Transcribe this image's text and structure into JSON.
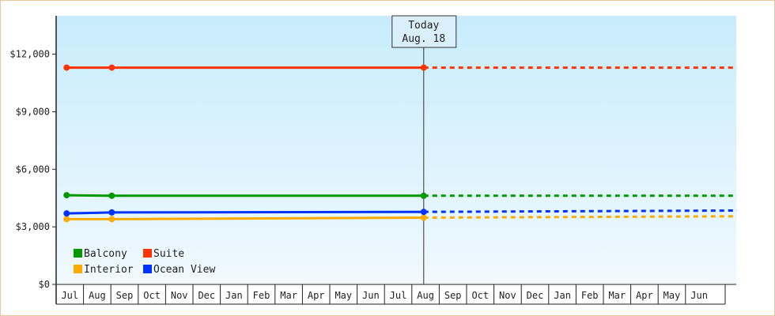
{
  "chart_data": {
    "type": "line",
    "title": "",
    "xlabel": "",
    "ylabel": "",
    "ylim": [
      0,
      14000
    ],
    "yticks": [
      0,
      3000,
      6000,
      9000,
      12000
    ],
    "ytick_labels": [
      "$0",
      "$3,000",
      "$6,000",
      "$9,000",
      "$12,000"
    ],
    "months": [
      "Jul",
      "Aug",
      "Sep",
      "Oct",
      "Nov",
      "Dec",
      "Jan",
      "Feb",
      "Mar",
      "Apr",
      "May",
      "Jun",
      "Jul",
      "Aug",
      "Sep",
      "Oct",
      "Nov",
      "Dec",
      "Jan",
      "Feb",
      "Mar",
      "Apr",
      "May",
      "Jun"
    ],
    "today": {
      "line1": "Today",
      "line2": "Aug. 18",
      "x": 13.0
    },
    "grid": false,
    "legend_position": "bottom-left",
    "series": [
      {
        "name": "Balcony",
        "color": "#009900",
        "actual": [
          [
            -0.05,
            4650
          ],
          [
            1.6,
            4620
          ],
          [
            13.0,
            4620
          ]
        ],
        "forecast": [
          [
            13.0,
            4620
          ],
          [
            24.45,
            4620
          ]
        ]
      },
      {
        "name": "Suite",
        "color": "#ff3300",
        "actual": [
          [
            -0.05,
            11300
          ],
          [
            1.6,
            11300
          ],
          [
            13.0,
            11300
          ]
        ],
        "forecast": [
          [
            13.0,
            11300
          ],
          [
            24.45,
            11300
          ]
        ]
      },
      {
        "name": "Interior",
        "color": "#ffaa00",
        "actual": [
          [
            -0.05,
            3400
          ],
          [
            1.6,
            3400
          ],
          [
            13.0,
            3480
          ]
        ],
        "forecast": [
          [
            13.0,
            3480
          ],
          [
            24.45,
            3550
          ]
        ]
      },
      {
        "name": "Ocean View",
        "color": "#0033ff",
        "actual": [
          [
            -0.05,
            3700
          ],
          [
            1.6,
            3750
          ],
          [
            13.0,
            3780
          ]
        ],
        "forecast": [
          [
            13.0,
            3780
          ],
          [
            24.45,
            3850
          ]
        ]
      }
    ]
  }
}
